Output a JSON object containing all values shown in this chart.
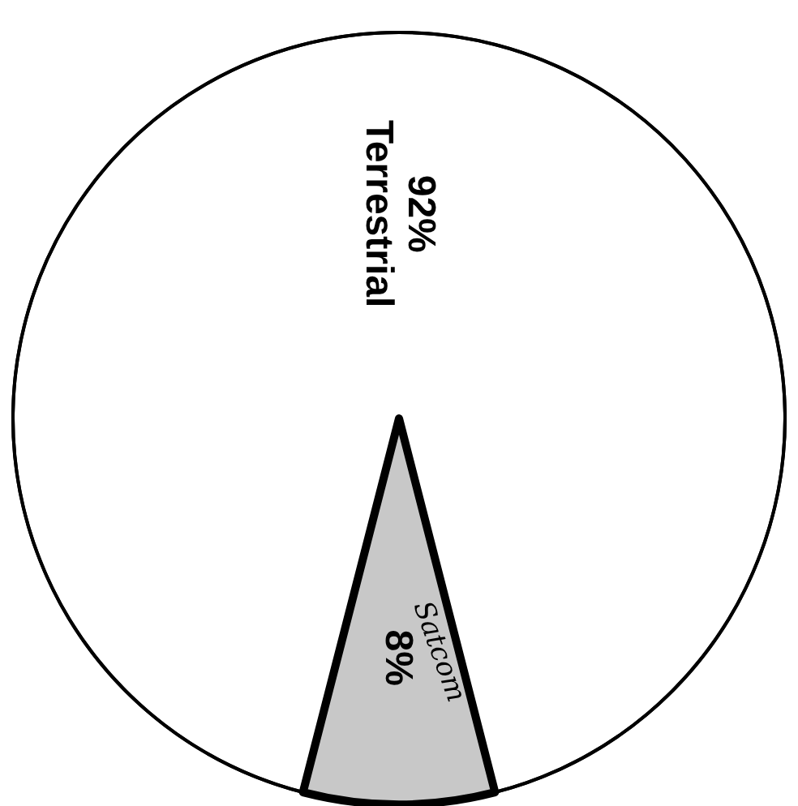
{
  "chart_data": {
    "type": "pie",
    "categories": [
      "Terrestrial",
      "Satcom"
    ],
    "values": [
      92,
      8
    ],
    "value_labels": [
      "92%",
      "8%"
    ],
    "colors": [
      "#ffffff",
      "#c8c8c8"
    ]
  }
}
